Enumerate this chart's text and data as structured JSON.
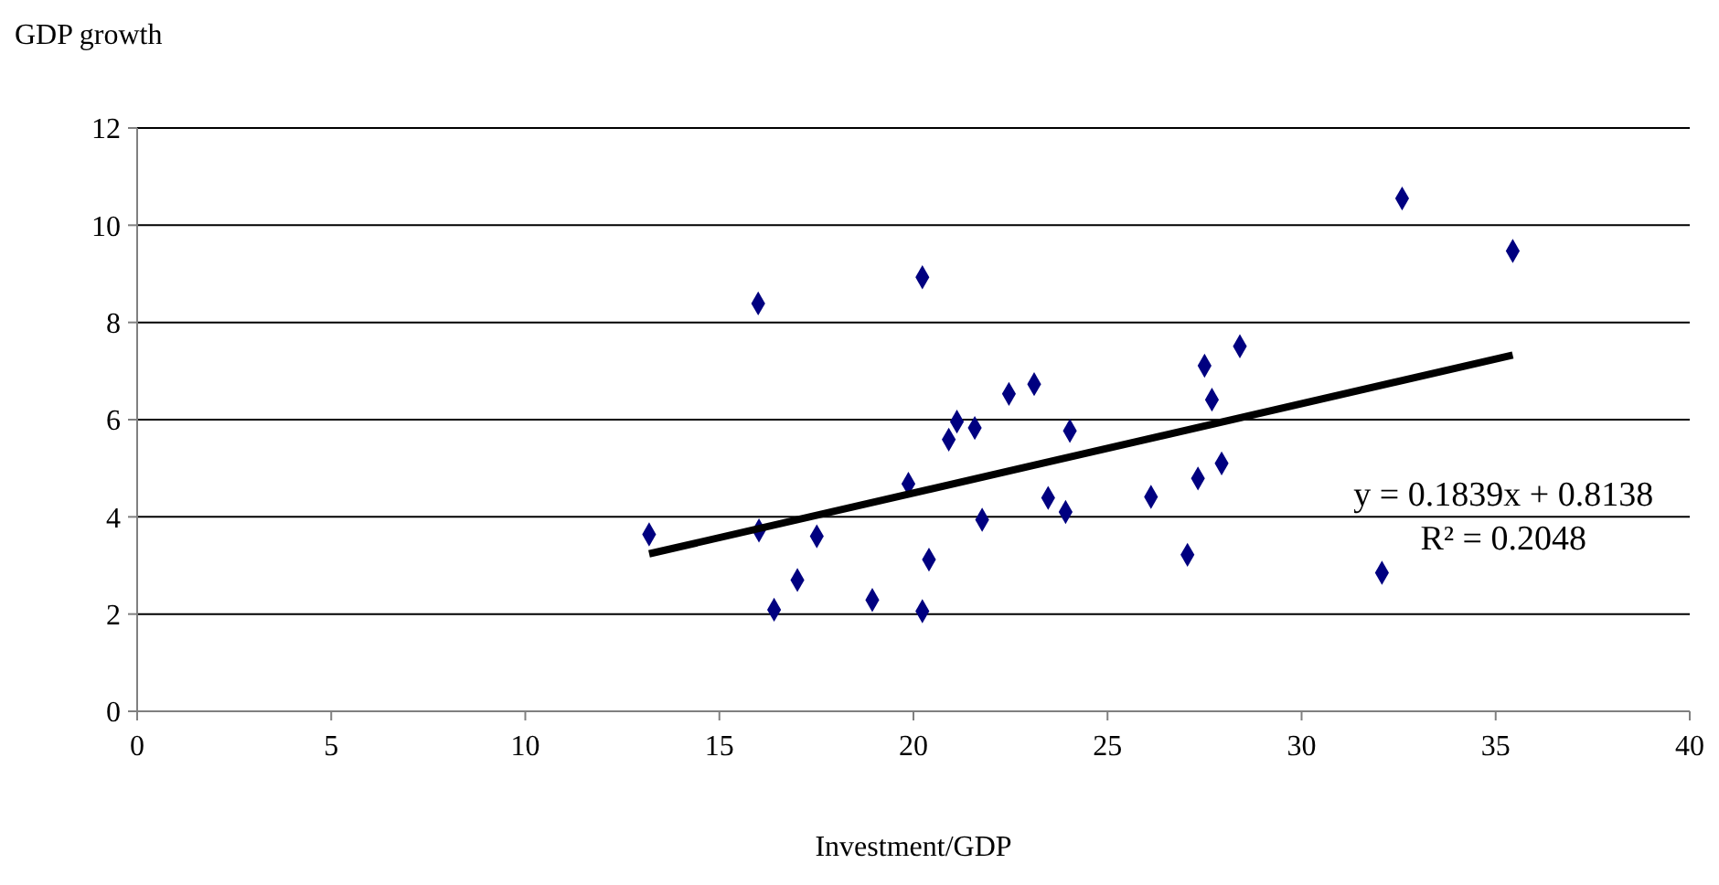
{
  "chart_data": {
    "type": "scatter",
    "xlabel": "Investment/GDP",
    "ylabel": "GDP growth",
    "marker": "diamond",
    "grid": "y",
    "xlim": [
      0,
      40
    ],
    "xticks": [
      0,
      5,
      10,
      15,
      20,
      25,
      30,
      35,
      40
    ],
    "ylim": [
      0,
      12
    ],
    "yticks": [
      0,
      2,
      4,
      6,
      8,
      10,
      12
    ],
    "series": [
      {
        "color": "#000080",
        "x": [
          13.19,
          16.0,
          16.02,
          16.41,
          17.01,
          17.51,
          18.94,
          19.87,
          20.23,
          20.23,
          20.4,
          20.91,
          21.12,
          21.58,
          21.77,
          22.46,
          23.11,
          23.47,
          24.03,
          23.92,
          26.12,
          27.06,
          27.33,
          27.5,
          27.69,
          27.94,
          28.41,
          32.07,
          32.59,
          35.44
        ],
        "values": [
          3.64,
          8.39,
          3.72,
          2.09,
          2.7,
          3.6,
          2.29,
          4.68,
          8.93,
          2.06,
          3.12,
          5.59,
          5.96,
          5.83,
          3.94,
          6.53,
          6.73,
          4.39,
          5.77,
          4.1,
          4.41,
          3.22,
          4.79,
          7.11,
          6.41,
          5.1,
          7.51,
          2.85,
          10.55,
          9.47
        ]
      },
      {
        "type": "line",
        "color": "#000000",
        "marker": "none",
        "x": [
          13.19,
          35.44
        ],
        "values": [
          3.24,
          7.33
        ]
      }
    ],
    "annotations": [
      "y = 0.1839x + 0.8138",
      "R² = 0.2048"
    ]
  }
}
